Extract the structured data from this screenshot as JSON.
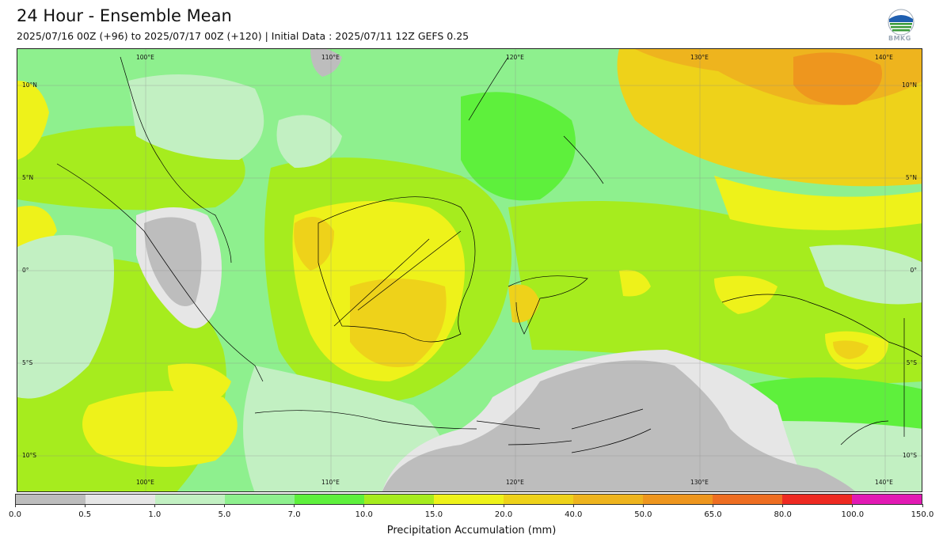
{
  "header": {
    "title": "24 Hour - Ensemble Mean",
    "subtitle": "2025/07/16 00Z (+96) to 2025/07/17 00Z (+120) | Initial Data : 2025/07/11 12Z GEFS 0.25",
    "logo_text": "BMKG"
  },
  "map": {
    "top_lon_labels": [
      "100°E",
      "110°E",
      "120°E",
      "130°E",
      "140°E"
    ],
    "bottom_lon_labels": [
      "100°E",
      "110°E",
      "120°E",
      "130°E",
      "140°E"
    ],
    "left_lat_labels": [
      "10°N",
      "5°N",
      "0°",
      "5°S",
      "10°S"
    ],
    "right_lat_labels": [
      "10°N",
      "5°N",
      "0°",
      "5°S",
      "10°S"
    ]
  },
  "colorbar": {
    "colors": [
      "#bdbdbd",
      "#e6e6e6",
      "#c2f0c2",
      "#8ef08e",
      "#5ef03c",
      "#a6ec1e",
      "#eef21a",
      "#eed21a",
      "#eeb41e",
      "#ee961e",
      "#ee6e22",
      "#ee2a22",
      "#e21ab4"
    ],
    "ticks": [
      "0.0",
      "0.5",
      "1.0",
      "5.0",
      "7.0",
      "10.0",
      "15.0",
      "20.0",
      "40.0",
      "50.0",
      "65.0",
      "80.0",
      "100.0",
      "150.0"
    ],
    "label": "Precipitation Accumulation (mm)"
  }
}
